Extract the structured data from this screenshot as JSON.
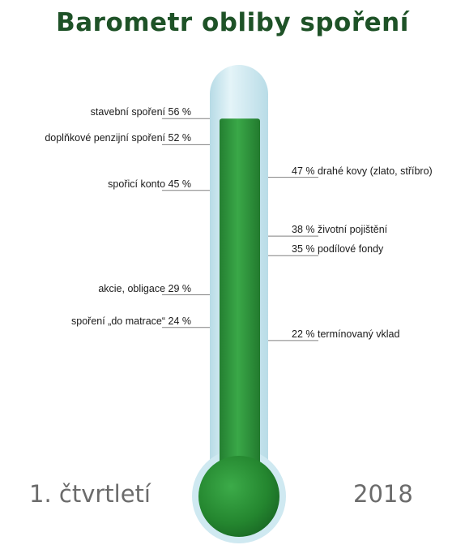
{
  "title": "Barometr obliby spoření",
  "footer": {
    "period": "1. čtvrtletí",
    "year": "2018"
  },
  "colors": {
    "title": "#1e5227",
    "tube_glass": "#cfe9f1",
    "fill": "#2f9a3c",
    "fill_dark": "#1f7a2c",
    "leader": "#808080",
    "footer": "#6b6b6b"
  },
  "chart_data": {
    "type": "thermometer",
    "title": "Barometr obliby spoření",
    "unit": "%",
    "fill_level": 56,
    "left_items": [
      {
        "label": "stavební spoření",
        "value": 56,
        "value_text": "56 %"
      },
      {
        "label": "doplňkové penzijní spoření",
        "value": 52,
        "value_text": "52 %"
      },
      {
        "label": "spořicí konto",
        "value": 45,
        "value_text": "45 %"
      },
      {
        "label": "akcie, obligace",
        "value": 29,
        "value_text": "29 %"
      },
      {
        "label": "spoření „do matrace“",
        "value": 24,
        "value_text": "24 %"
      }
    ],
    "right_items": [
      {
        "label": "drahé kovy (zlato, stříbro)",
        "value": 47,
        "value_text": "47 %"
      },
      {
        "label": "životní pojištění",
        "value": 38,
        "value_text": "38 %"
      },
      {
        "label": "podílové fondy",
        "value": 35,
        "value_text": "35 %"
      },
      {
        "label": "termínovaný vklad",
        "value": 22,
        "value_text": "22 %"
      }
    ]
  }
}
